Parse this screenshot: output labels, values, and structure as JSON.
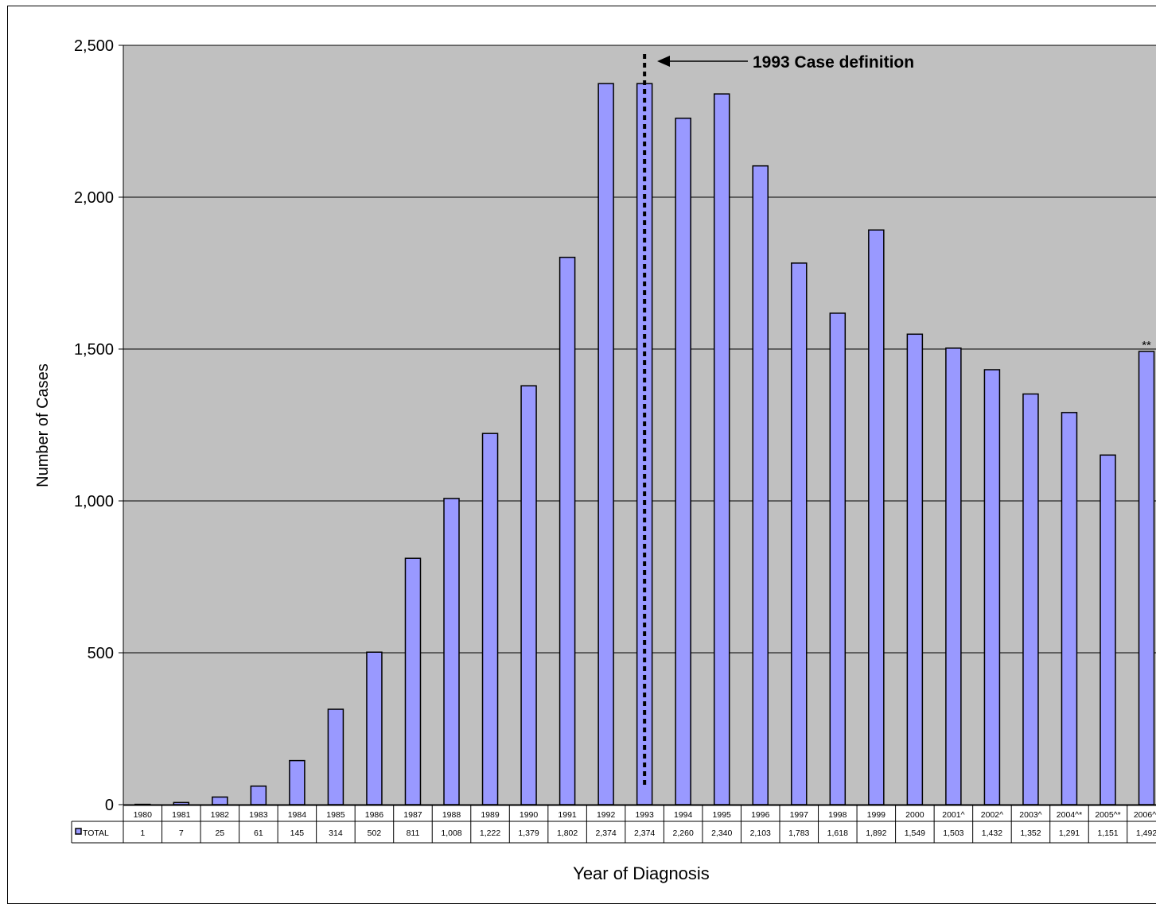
{
  "chart_data": {
    "type": "bar",
    "title": "",
    "xlabel": "Year of Diagnosis",
    "ylabel": "Number of Cases",
    "ylim": [
      0,
      2500
    ],
    "yticks": [
      "0",
      "500",
      "1,000",
      "1,500",
      "2,000",
      "2,500"
    ],
    "ytick_values": [
      0,
      500,
      1000,
      1500,
      2000,
      2500
    ],
    "grid": true,
    "categories": [
      "1980",
      "1981",
      "1982",
      "1983",
      "1984",
      "1985",
      "1986",
      "1987",
      "1988",
      "1989",
      "1990",
      "1991",
      "1992",
      "1993",
      "1994",
      "1995",
      "1996",
      "1997",
      "1998",
      "1999",
      "2000",
      "2001^",
      "2002^",
      "2003^",
      "2004^*",
      "2005^*",
      "2006^*"
    ],
    "series": [
      {
        "name": "TOTAL",
        "values": [
          1,
          7,
          25,
          61,
          145,
          314,
          502,
          811,
          1008,
          1222,
          1379,
          1802,
          2374,
          2374,
          2260,
          2340,
          2103,
          1783,
          1618,
          1892,
          1549,
          1503,
          1432,
          1352,
          1291,
          1151,
          1492
        ],
        "labels": [
          "1",
          "7",
          "25",
          "61",
          "145",
          "314",
          "502",
          "811",
          "1,008",
          "1,222",
          "1,379",
          "1,802",
          "2,374",
          "2,374",
          "2,260",
          "2,340",
          "2,103",
          "1,783",
          "1,618",
          "1,892",
          "1,549",
          "1,503",
          "1,432",
          "1,352",
          "1,291",
          "1,151",
          "1,492"
        ]
      }
    ],
    "annotations": [
      {
        "text": "1993  Case definition",
        "category": "1993"
      },
      {
        "text": "**",
        "category": "2006^*"
      }
    ],
    "colors": {
      "bar": "#9999ff",
      "plot_bg": "#c0c0c0",
      "legend_key": "#9999ff"
    }
  }
}
